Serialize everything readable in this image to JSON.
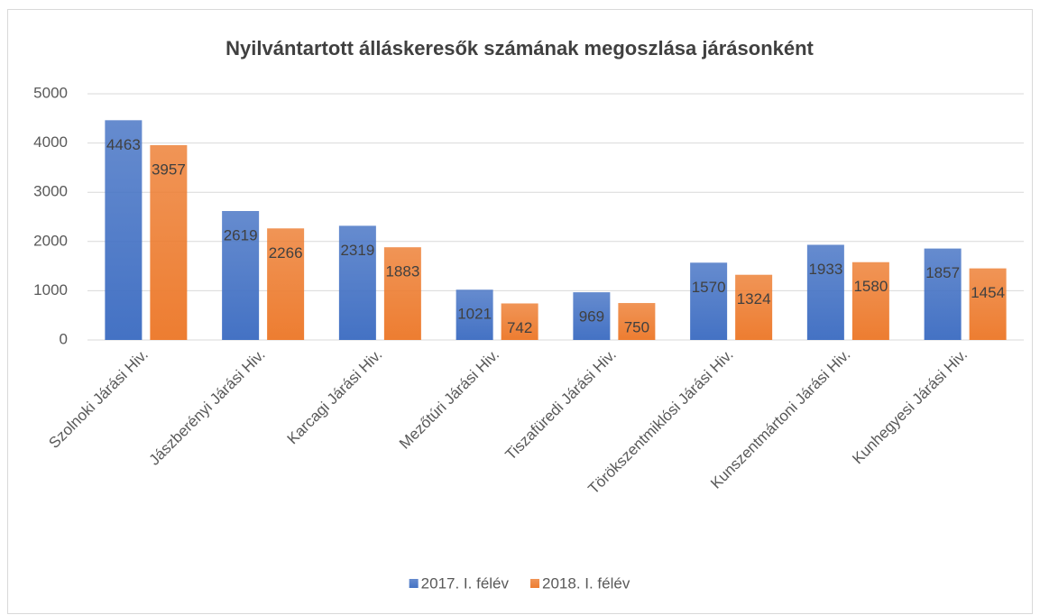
{
  "chart_data": {
    "type": "bar",
    "title": "Nyilvántartott álláskeresők számának megoszlása járásonként",
    "categories": [
      "Szolnoki Járási Hiv.",
      "Jászberényi Járási Hiv.",
      "Karcagi Járási Hiv.",
      "Mezőtúri Járási Hiv.",
      "Tiszafüredi Járási Hiv.",
      "Törökszentmiklósi Járási Hiv.",
      "Kunszentmártoni Járási Hiv.",
      "Kunhegyesi Járási Hiv."
    ],
    "series": [
      {
        "name": "2017. I. félév",
        "color": "#4472c4",
        "values": [
          4463,
          2619,
          2319,
          1021,
          969,
          1570,
          1933,
          1857
        ]
      },
      {
        "name": "2018. I. félév",
        "color": "#ed7d31",
        "values": [
          3957,
          2266,
          1883,
          742,
          750,
          1324,
          1580,
          1454
        ]
      }
    ],
    "ylim": [
      0,
      5000
    ],
    "yticks": [
      0,
      1000,
      2000,
      3000,
      4000,
      5000
    ],
    "grid": true,
    "legend": "bottom"
  }
}
